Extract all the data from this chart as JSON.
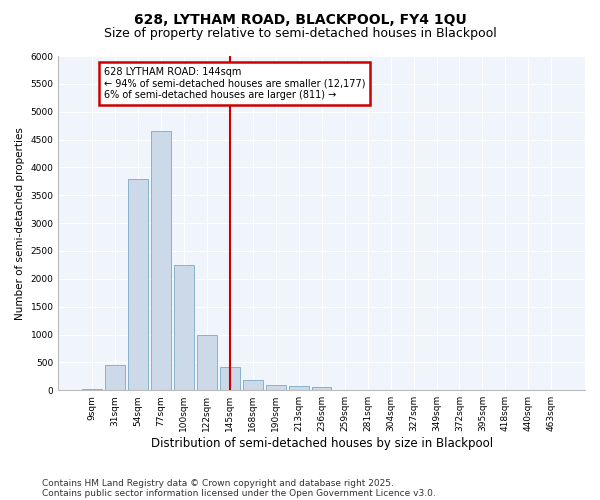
{
  "title1": "628, LYTHAM ROAD, BLACKPOOL, FY4 1QU",
  "title2": "Size of property relative to semi-detached houses in Blackpool",
  "xlabel": "Distribution of semi-detached houses by size in Blackpool",
  "ylabel": "Number of semi-detached properties",
  "categories": [
    "9sqm",
    "31sqm",
    "54sqm",
    "77sqm",
    "100sqm",
    "122sqm",
    "145sqm",
    "168sqm",
    "190sqm",
    "213sqm",
    "236sqm",
    "259sqm",
    "281sqm",
    "304sqm",
    "327sqm",
    "349sqm",
    "372sqm",
    "395sqm",
    "418sqm",
    "440sqm",
    "463sqm"
  ],
  "bar_values": [
    30,
    450,
    3800,
    4650,
    2250,
    1000,
    420,
    175,
    100,
    75,
    50,
    10,
    0,
    0,
    0,
    0,
    0,
    0,
    0,
    0,
    0
  ],
  "bar_color": "#ccd9e8",
  "bar_edge_color": "#7aaac8",
  "vline_x_index": 6,
  "vline_color": "#cc0000",
  "annotation_title": "628 LYTHAM ROAD: 144sqm",
  "annotation_line1": "← 94% of semi-detached houses are smaller (12,177)",
  "annotation_line2": "6% of semi-detached houses are larger (811) →",
  "annotation_box_color": "#cc0000",
  "ylim": [
    0,
    6000
  ],
  "yticks": [
    0,
    500,
    1000,
    1500,
    2000,
    2500,
    3000,
    3500,
    4000,
    4500,
    5000,
    5500,
    6000
  ],
  "footnote1": "Contains HM Land Registry data © Crown copyright and database right 2025.",
  "footnote2": "Contains public sector information licensed under the Open Government Licence v3.0.",
  "bg_color": "#ffffff",
  "plot_bg_color": "#f0f4fb",
  "grid_color": "#ffffff",
  "title1_fontsize": 10,
  "title2_fontsize": 9,
  "xlabel_fontsize": 8.5,
  "ylabel_fontsize": 7.5,
  "tick_fontsize": 6.5,
  "footnote_fontsize": 6.5
}
